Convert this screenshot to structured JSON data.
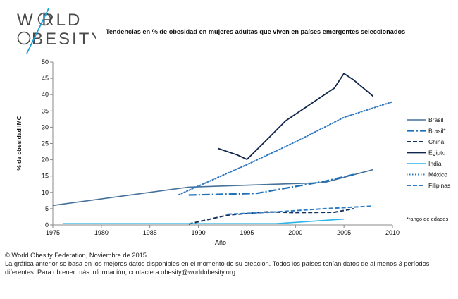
{
  "logo": {
    "line1": "W RLD",
    "line2": "BESITY",
    "accent": "#1b9fd8"
  },
  "chart_data": {
    "type": "line",
    "title": "Tendencias en % de obesidad en mujeres adultas que viven en países emergentes seleccionados",
    "xlabel": "Año",
    "ylabel": "% de obesidad IMC",
    "xlim": [
      1975,
      2010
    ],
    "ylim": [
      0,
      50
    ],
    "xticks": [
      "1975",
      "1980",
      "1985",
      "1990",
      "1995",
      "2000",
      "2005",
      "2010"
    ],
    "yticks": [
      "0",
      "5",
      "10",
      "15",
      "20",
      "25",
      "30",
      "35",
      "40",
      "45",
      "50"
    ],
    "grid": false,
    "legend_position": "right",
    "note": "*rango de edades",
    "series": [
      {
        "name": "Brasil",
        "color": "#45719b",
        "dash": "solid",
        "width": 1.6,
        "points": [
          [
            1975,
            6.0
          ],
          [
            1989,
            11.6
          ],
          [
            2003,
            13.0
          ],
          [
            2008,
            17.0
          ]
        ]
      },
      {
        "name": "Brasil*",
        "color": "#1e70b8",
        "dash": "longdashdot",
        "width": 2.2,
        "points": [
          [
            1989,
            9.2
          ],
          [
            1992,
            9.4
          ],
          [
            1996,
            9.7
          ],
          [
            2003,
            13.4
          ],
          [
            2006,
            15.5
          ]
        ]
      },
      {
        "name": "China",
        "color": "#14315c",
        "dash": "dash",
        "width": 2.0,
        "points": [
          [
            1989,
            0.3
          ],
          [
            1993,
            3.0
          ],
          [
            1997,
            4.0
          ],
          [
            2000,
            3.8
          ],
          [
            2004,
            3.9
          ],
          [
            2006,
            5.0
          ]
        ]
      },
      {
        "name": "Egipto",
        "color": "#10264c",
        "dash": "solid",
        "width": 1.8,
        "points": [
          [
            1992,
            23.5
          ],
          [
            1994,
            21.5
          ],
          [
            1995,
            20.1
          ],
          [
            1997,
            26.0
          ],
          [
            1999,
            32.0
          ],
          [
            2004,
            42.0
          ],
          [
            2005,
            46.5
          ],
          [
            2006,
            44.5
          ],
          [
            2008,
            39.5
          ]
        ]
      },
      {
        "name": "India",
        "color": "#2bb4e8",
        "dash": "solid",
        "width": 1.6,
        "points": [
          [
            1976,
            0.4
          ],
          [
            1998,
            0.4
          ],
          [
            2005,
            1.8
          ]
        ]
      },
      {
        "name": "México",
        "color": "#2f78c0",
        "dash": "dot",
        "width": 2.0,
        "points": [
          [
            1988,
            9.3
          ],
          [
            1995,
            18.5
          ],
          [
            2000,
            25.5
          ],
          [
            2005,
            33.0
          ],
          [
            2010,
            37.8
          ]
        ]
      },
      {
        "name": "Filipinas",
        "color": "#2d7cc4",
        "dash": "dash",
        "width": 2.0,
        "points": [
          [
            1993,
            3.3
          ],
          [
            1998,
            4.0
          ],
          [
            2003,
            5.0
          ],
          [
            2008,
            5.8
          ]
        ]
      }
    ]
  },
  "footer": {
    "line1": "© World Obesity Federation, Noviembre de 2015",
    "line2": "La gráfica anterior se basa en los mejores datos disponibles en el momento de su creación.  Todos los países tenían datos de al menos 3 períodos",
    "line3": "diferentes.  Para obtener más información, contacte a obesity@worldobesity.org"
  }
}
